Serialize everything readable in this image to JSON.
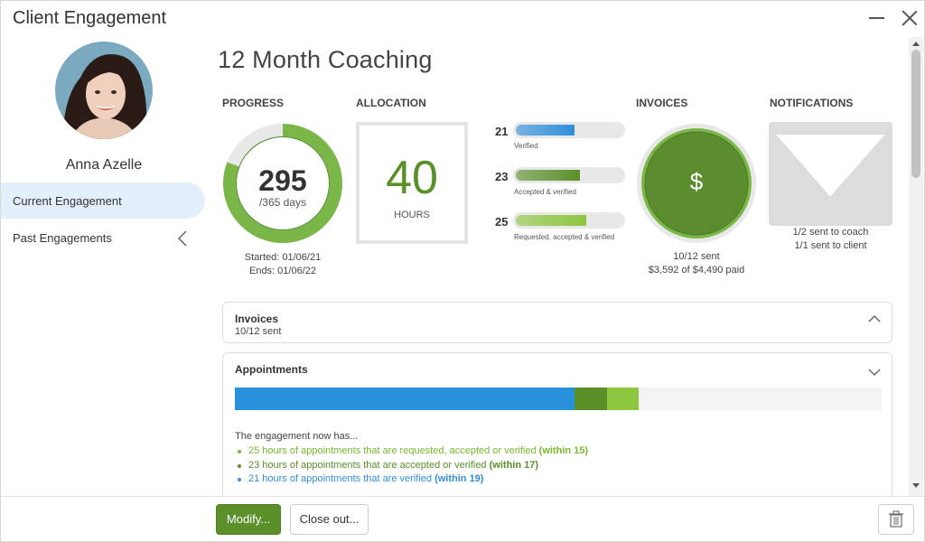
{
  "window": {
    "title": "Client Engagement"
  },
  "client": {
    "name": "Anna Azelle"
  },
  "sidebar": {
    "items": [
      {
        "label": "Current Engagement",
        "active": true
      },
      {
        "label": "Past Engagements",
        "active": false
      }
    ]
  },
  "engagement": {
    "title": "12 Month Coaching"
  },
  "progress": {
    "label": "PROGRESS",
    "value": "295",
    "total_text": "/365 days",
    "fraction": 0.808,
    "started": "Started: 01/06/21",
    "ends": "Ends: 01/06/22"
  },
  "allocation": {
    "label": "ALLOCATION",
    "value": "40",
    "unit": "HOURS"
  },
  "hour_bars": [
    {
      "value": "21",
      "label": "Verified",
      "fraction": 0.525,
      "color": "#2f8fdc"
    },
    {
      "value": "23",
      "label": "Accepted & verified",
      "fraction": 0.575,
      "color": "#5a8f2a"
    },
    {
      "value": "25",
      "label": "Requested, accepted & verified",
      "fraction": 0.625,
      "color": "#8dc63f"
    }
  ],
  "invoices": {
    "label": "INVOICES",
    "symbol": "$",
    "sent": "10/12 sent",
    "paid": "$3,592 of $4,490 paid"
  },
  "notifications": {
    "label": "NOTIFICATIONS",
    "count": "2",
    "line1": "1/2 sent to coach",
    "line2": "1/1 sent to client"
  },
  "cards": {
    "invoices": {
      "title": "Invoices",
      "sub": "10/12 sent"
    },
    "appointments": {
      "title": "Appointments",
      "segments": [
        {
          "name": "verified",
          "value": 21,
          "color": "#2991db"
        },
        {
          "name": "accepted",
          "value": 2,
          "color": "#5a8f2a"
        },
        {
          "name": "requested",
          "value": 2,
          "color": "#8dc63f"
        }
      ],
      "total_hours": 40,
      "intro": "The engagement now has...",
      "items": [
        {
          "text": "25 hours of appointments that are requested, accepted or verified",
          "note": "(within 15)",
          "color": "#7ab82e"
        },
        {
          "text": "23 hours of appointments that are accepted or verified",
          "note": "(within 17)",
          "color": "#5a8f2a"
        },
        {
          "text": "21 hours of appointments that are verified",
          "note": "(within 19)",
          "color": "#2f8fdc"
        }
      ]
    }
  },
  "footer": {
    "modify": "Modify...",
    "close_out": "Close out..."
  },
  "colors": {
    "accent_green": "#5a8f2a",
    "light_green": "#8dc63f",
    "blue": "#2f8fdc",
    "active_bg": "#e3f0fb"
  },
  "icons": [
    "minimize-icon",
    "close-icon",
    "chevron-left-icon",
    "caret-up-icon",
    "caret-down-icon",
    "dollar-icon",
    "envelope-icon",
    "trash-icon"
  ]
}
